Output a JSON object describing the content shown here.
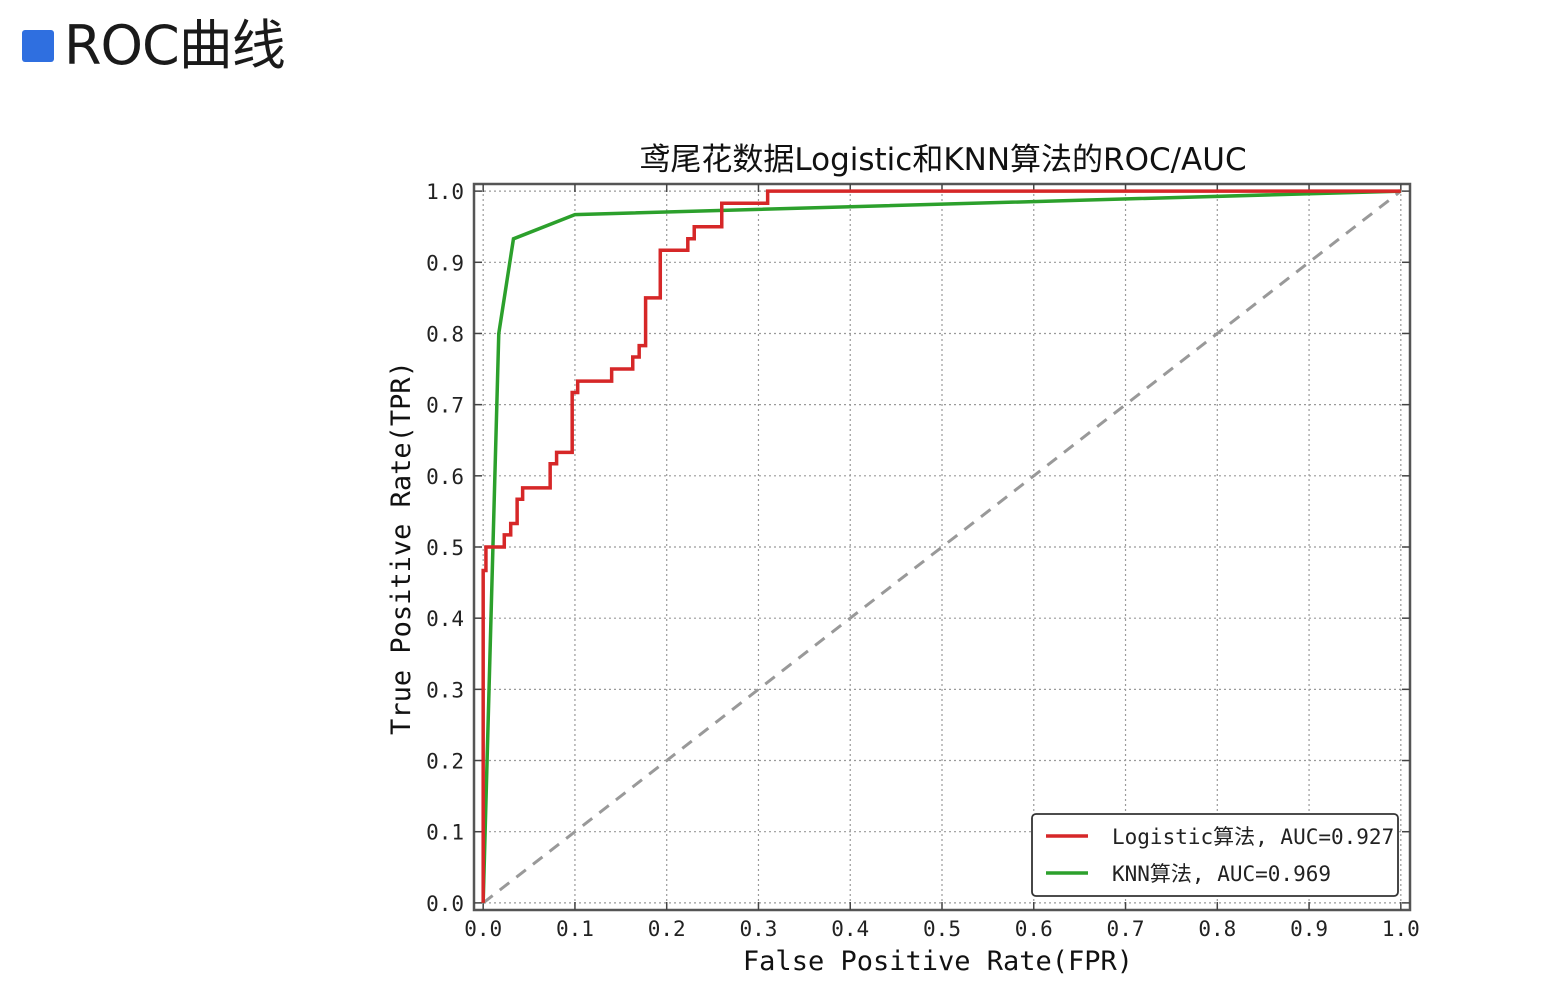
{
  "slide": {
    "title": "ROC曲线",
    "bullet_color": "#2f6fe0"
  },
  "chart_data": {
    "type": "line",
    "title": "鸢尾花数据Logistic和KNN算法的ROC/AUC",
    "xlabel": "False Positive Rate(FPR)",
    "ylabel": "True Positive Rate(TPR)",
    "xlim": [
      -0.01,
      1.01
    ],
    "ylim": [
      -0.01,
      1.01
    ],
    "xticks": [
      0.0,
      0.1,
      0.2,
      0.3,
      0.4,
      0.5,
      0.6,
      0.7,
      0.8,
      0.9,
      1.0
    ],
    "xtick_labels": [
      "0.0",
      "0.1",
      "0.2",
      "0.3",
      "0.4",
      "0.5",
      "0.6",
      "0.7",
      "0.8",
      "0.9",
      "1.0"
    ],
    "yticks": [
      0.0,
      0.1,
      0.2,
      0.3,
      0.4,
      0.5,
      0.6,
      0.7,
      0.8,
      0.9,
      1.0
    ],
    "ytick_labels": [
      "0.0",
      "0.1",
      "0.2",
      "0.3",
      "0.4",
      "0.5",
      "0.6",
      "0.7",
      "0.8",
      "0.9",
      "1.0"
    ],
    "grid": true,
    "legend_position": "lower-right",
    "series": [
      {
        "name": "Logistic算法, AUC=0.927",
        "color": "#d62728",
        "x": [
          0.0,
          0.0,
          0.003,
          0.003,
          0.01,
          0.01,
          0.023,
          0.023,
          0.03,
          0.03,
          0.037,
          0.037,
          0.043,
          0.043,
          0.05,
          0.05,
          0.073,
          0.073,
          0.08,
          0.08,
          0.097,
          0.097,
          0.103,
          0.103,
          0.14,
          0.14,
          0.163,
          0.163,
          0.17,
          0.17,
          0.177,
          0.177,
          0.193,
          0.193,
          0.2,
          0.2,
          0.223,
          0.223,
          0.23,
          0.23,
          0.26,
          0.26,
          0.31,
          0.31,
          1.0
        ],
        "y": [
          0.0,
          0.467,
          0.467,
          0.5,
          0.5,
          0.5,
          0.5,
          0.517,
          0.517,
          0.533,
          0.533,
          0.567,
          0.567,
          0.583,
          0.583,
          0.583,
          0.583,
          0.617,
          0.617,
          0.633,
          0.633,
          0.717,
          0.717,
          0.733,
          0.733,
          0.75,
          0.75,
          0.767,
          0.767,
          0.783,
          0.783,
          0.85,
          0.85,
          0.917,
          0.917,
          0.917,
          0.917,
          0.933,
          0.933,
          0.95,
          0.95,
          0.983,
          0.983,
          1.0,
          1.0
        ]
      },
      {
        "name": "KNN算法, AUC=0.969",
        "color": "#2ca02c",
        "x": [
          0.0,
          0.017,
          0.033,
          0.1,
          1.0
        ],
        "y": [
          0.0,
          0.8,
          0.933,
          0.967,
          1.0
        ]
      },
      {
        "color": "#999999",
        "style": "dashed",
        "x": [
          0.0,
          1.0
        ],
        "y": [
          0.0,
          1.0
        ]
      }
    ]
  }
}
